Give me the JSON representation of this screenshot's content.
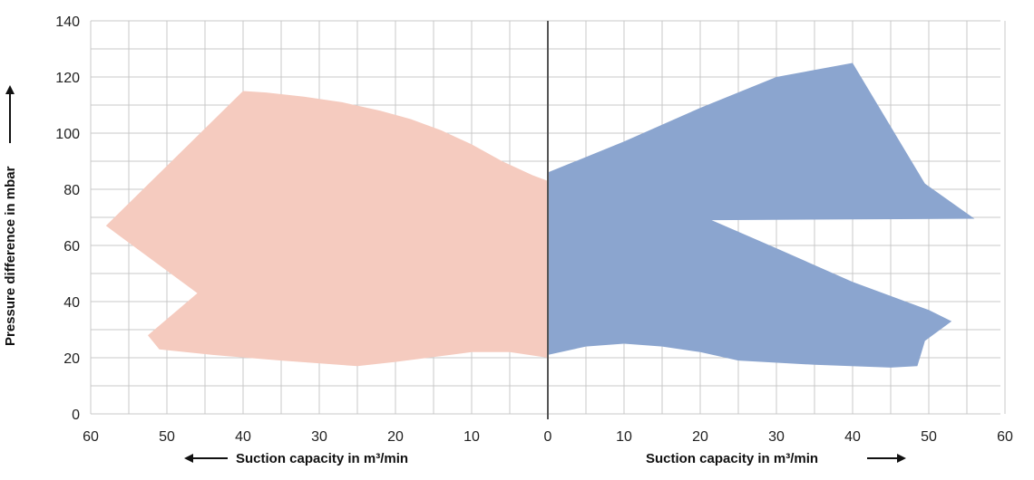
{
  "chart_data": {
    "type": "area",
    "x_left": {
      "label": "Suction capacity in m³/min",
      "range": [
        60,
        0
      ],
      "ticks": [
        "60",
        "50",
        "40",
        "30",
        "20",
        "10",
        "0"
      ]
    },
    "x_right": {
      "label": "Suction capacity in m³/min",
      "range": [
        0,
        60
      ],
      "ticks": [
        "0",
        "10",
        "20",
        "30",
        "40",
        "50",
        "60"
      ]
    },
    "y": {
      "label": "Pressure difference in mbar",
      "range": [
        0,
        140
      ],
      "ticks": [
        "0",
        "20",
        "40",
        "60",
        "80",
        "100",
        "120",
        "140"
      ]
    },
    "grid": true,
    "series": [
      {
        "side": "left",
        "color": "#f5cbbf",
        "outline": [
          [
            0,
            83
          ],
          [
            2,
            85
          ],
          [
            6,
            90
          ],
          [
            10,
            96
          ],
          [
            14,
            101
          ],
          [
            18,
            105
          ],
          [
            22,
            108
          ],
          [
            27,
            111
          ],
          [
            32,
            113
          ],
          [
            37,
            114.5
          ],
          [
            40,
            115
          ],
          [
            58,
            67
          ],
          [
            46,
            43
          ],
          [
            52.5,
            28
          ],
          [
            51,
            23
          ],
          [
            44,
            21
          ],
          [
            35,
            19
          ],
          [
            25,
            17
          ],
          [
            20,
            18.5
          ],
          [
            10,
            22
          ],
          [
            5,
            22
          ],
          [
            0,
            20
          ]
        ]
      },
      {
        "side": "right",
        "color": "#8ba5cf",
        "outline": [
          [
            0,
            86
          ],
          [
            10,
            97
          ],
          [
            20,
            109
          ],
          [
            30,
            120
          ],
          [
            40,
            125
          ],
          [
            49.5,
            82
          ],
          [
            56,
            69.5
          ],
          [
            21.5,
            69
          ],
          [
            30,
            59
          ],
          [
            40,
            47
          ],
          [
            50,
            37
          ],
          [
            53,
            33
          ],
          [
            51.5,
            30
          ],
          [
            49.5,
            26
          ],
          [
            48.5,
            17
          ],
          [
            45,
            16.5
          ],
          [
            35,
            17.5
          ],
          [
            25,
            19
          ],
          [
            20,
            22
          ],
          [
            15,
            24
          ],
          [
            10,
            25
          ],
          [
            5,
            24
          ],
          [
            0,
            21
          ]
        ]
      }
    ]
  }
}
